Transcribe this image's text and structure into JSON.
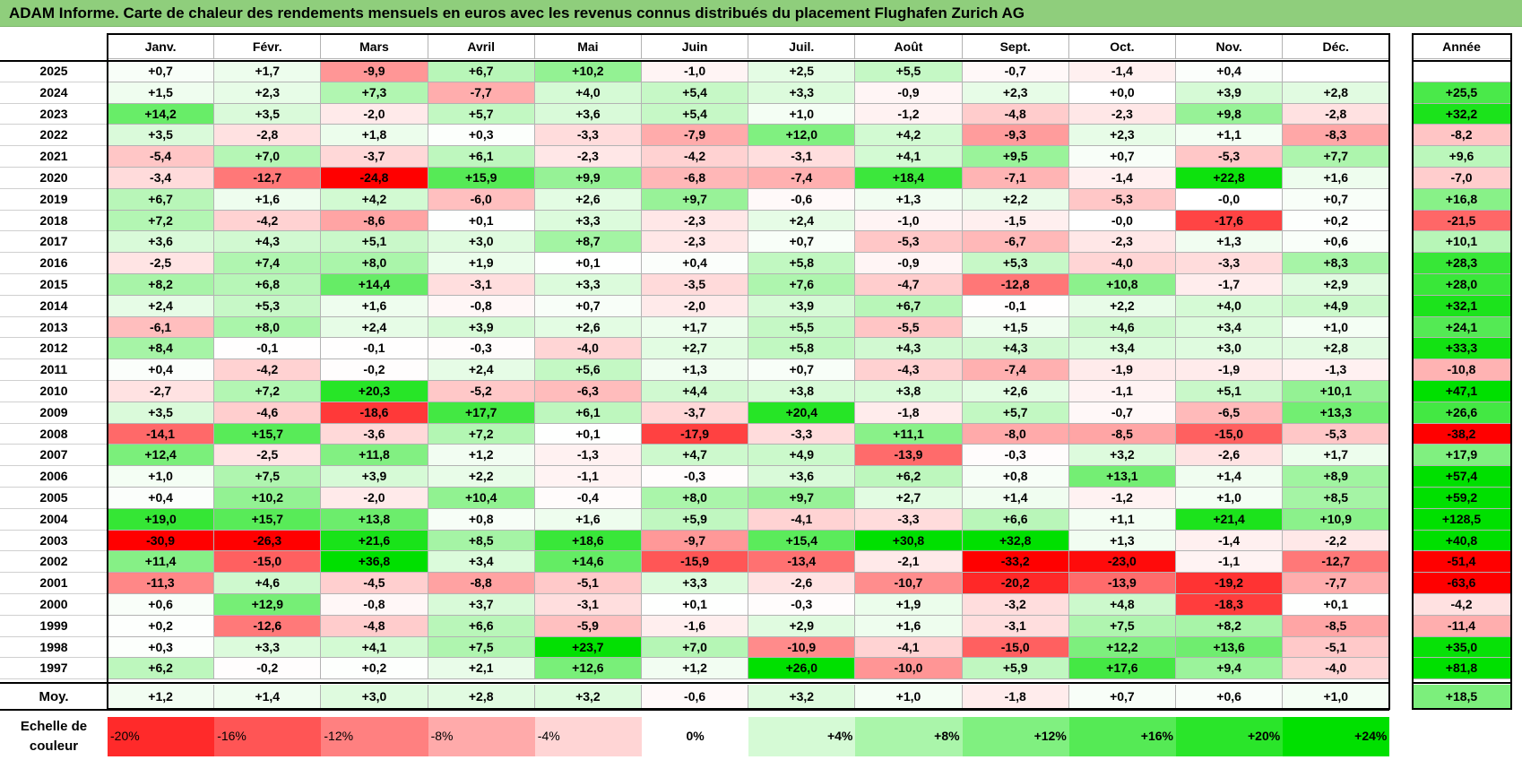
{
  "title": "ADAM Informe. Carte de chaleur des rendements mensuels en euros avec les revenus connus distribués du placement Flughafen Zurich AG",
  "chart_data": {
    "type": "heatmap",
    "title": "ADAM Informe. Carte de chaleur des rendements mensuels en euros avec les revenus connus distribués du placement Flughafen Zurich AG",
    "months": [
      "Janv.",
      "Févr.",
      "Mars",
      "Avril",
      "Mai",
      "Juin",
      "Juil.",
      "Août",
      "Sept.",
      "Oct.",
      "Nov.",
      "Déc."
    ],
    "year_header": "Année",
    "rows": [
      {
        "year": "2025",
        "values": [
          "+0,7",
          "+1,7",
          "-9,9",
          "+6,7",
          "+10,2",
          "-1,0",
          "+2,5",
          "+5,5",
          "-0,7",
          "-1,4",
          "+0,4",
          ""
        ],
        "annual": ""
      },
      {
        "year": "2024",
        "values": [
          "+1,5",
          "+2,3",
          "+7,3",
          "-7,7",
          "+4,0",
          "+5,4",
          "+3,3",
          "-0,9",
          "+2,3",
          "+0,0",
          "+3,9",
          "+2,8"
        ],
        "annual": "+25,5"
      },
      {
        "year": "2023",
        "values": [
          "+14,2",
          "+3,5",
          "-2,0",
          "+5,7",
          "+3,6",
          "+5,4",
          "+1,0",
          "-1,2",
          "-4,8",
          "-2,3",
          "+9,8",
          "-2,8"
        ],
        "annual": "+32,2"
      },
      {
        "year": "2022",
        "values": [
          "+3,5",
          "-2,8",
          "+1,8",
          "+0,3",
          "-3,3",
          "-7,9",
          "+12,0",
          "+4,2",
          "-9,3",
          "+2,3",
          "+1,1",
          "-8,3"
        ],
        "annual": "-8,2"
      },
      {
        "year": "2021",
        "values": [
          "-5,4",
          "+7,0",
          "-3,7",
          "+6,1",
          "-2,3",
          "-4,2",
          "-3,1",
          "+4,1",
          "+9,5",
          "+0,7",
          "-5,3",
          "+7,7"
        ],
        "annual": "+9,6"
      },
      {
        "year": "2020",
        "values": [
          "-3,4",
          "-12,7",
          "-24,8",
          "+15,9",
          "+9,9",
          "-6,8",
          "-7,4",
          "+18,4",
          "-7,1",
          "-1,4",
          "+22,8",
          "+1,6"
        ],
        "annual": "-7,0"
      },
      {
        "year": "2019",
        "values": [
          "+6,7",
          "+1,6",
          "+4,2",
          "-6,0",
          "+2,6",
          "+9,7",
          "-0,6",
          "+1,3",
          "+2,2",
          "-5,3",
          "-0,0",
          "+0,7"
        ],
        "annual": "+16,8"
      },
      {
        "year": "2018",
        "values": [
          "+7,2",
          "-4,2",
          "-8,6",
          "+0,1",
          "+3,3",
          "-2,3",
          "+2,4",
          "-1,0",
          "-1,5",
          "-0,0",
          "-17,6",
          "+0,2"
        ],
        "annual": "-21,5"
      },
      {
        "year": "2017",
        "values": [
          "+3,6",
          "+4,3",
          "+5,1",
          "+3,0",
          "+8,7",
          "-2,3",
          "+0,7",
          "-5,3",
          "-6,7",
          "-2,3",
          "+1,3",
          "+0,6"
        ],
        "annual": "+10,1"
      },
      {
        "year": "2016",
        "values": [
          "-2,5",
          "+7,4",
          "+8,0",
          "+1,9",
          "+0,1",
          "+0,4",
          "+5,8",
          "-0,9",
          "+5,3",
          "-4,0",
          "-3,3",
          "+8,3"
        ],
        "annual": "+28,3"
      },
      {
        "year": "2015",
        "values": [
          "+8,2",
          "+6,8",
          "+14,4",
          "-3,1",
          "+3,3",
          "-3,5",
          "+7,6",
          "-4,7",
          "-12,8",
          "+10,8",
          "-1,7",
          "+2,9"
        ],
        "annual": "+28,0"
      },
      {
        "year": "2014",
        "values": [
          "+2,4",
          "+5,3",
          "+1,6",
          "-0,8",
          "+0,7",
          "-2,0",
          "+3,9",
          "+6,7",
          "-0,1",
          "+2,2",
          "+4,0",
          "+4,9"
        ],
        "annual": "+32,1"
      },
      {
        "year": "2013",
        "values": [
          "-6,1",
          "+8,0",
          "+2,4",
          "+3,9",
          "+2,6",
          "+1,7",
          "+5,5",
          "-5,5",
          "+1,5",
          "+4,6",
          "+3,4",
          "+1,0"
        ],
        "annual": "+24,1"
      },
      {
        "year": "2012",
        "values": [
          "+8,4",
          "-0,1",
          "-0,1",
          "-0,3",
          "-4,0",
          "+2,7",
          "+5,8",
          "+4,3",
          "+4,3",
          "+3,4",
          "+3,0",
          "+2,8"
        ],
        "annual": "+33,3"
      },
      {
        "year": "2011",
        "values": [
          "+0,4",
          "-4,2",
          "-0,2",
          "+2,4",
          "+5,6",
          "+1,3",
          "+0,7",
          "-4,3",
          "-7,4",
          "-1,9",
          "-1,9",
          "-1,3"
        ],
        "annual": "-10,8"
      },
      {
        "year": "2010",
        "values": [
          "-2,7",
          "+7,2",
          "+20,3",
          "-5,2",
          "-6,3",
          "+4,4",
          "+3,8",
          "+3,8",
          "+2,6",
          "-1,1",
          "+5,1",
          "+10,1"
        ],
        "annual": "+47,1"
      },
      {
        "year": "2009",
        "values": [
          "+3,5",
          "-4,6",
          "-18,6",
          "+17,7",
          "+6,1",
          "-3,7",
          "+20,4",
          "-1,8",
          "+5,7",
          "-0,7",
          "-6,5",
          "+13,3"
        ],
        "annual": "+26,6"
      },
      {
        "year": "2008",
        "values": [
          "-14,1",
          "+15,7",
          "-3,6",
          "+7,2",
          "+0,1",
          "-17,9",
          "-3,3",
          "+11,1",
          "-8,0",
          "-8,5",
          "-15,0",
          "-5,3"
        ],
        "annual": "-38,2"
      },
      {
        "year": "2007",
        "values": [
          "+12,4",
          "-2,5",
          "+11,8",
          "+1,2",
          "-1,3",
          "+4,7",
          "+4,9",
          "-13,9",
          "-0,3",
          "+3,2",
          "-2,6",
          "+1,7"
        ],
        "annual": "+17,9"
      },
      {
        "year": "2006",
        "values": [
          "+1,0",
          "+7,5",
          "+3,9",
          "+2,2",
          "-1,1",
          "-0,3",
          "+3,6",
          "+6,2",
          "+0,8",
          "+13,1",
          "+1,4",
          "+8,9"
        ],
        "annual": "+57,4"
      },
      {
        "year": "2005",
        "values": [
          "+0,4",
          "+10,2",
          "-2,0",
          "+10,4",
          "-0,4",
          "+8,0",
          "+9,7",
          "+2,7",
          "+1,4",
          "-1,2",
          "+1,0",
          "+8,5"
        ],
        "annual": "+59,2"
      },
      {
        "year": "2004",
        "values": [
          "+19,0",
          "+15,7",
          "+13,8",
          "+0,8",
          "+1,6",
          "+5,9",
          "-4,1",
          "-3,3",
          "+6,6",
          "+1,1",
          "+21,4",
          "+10,9"
        ],
        "annual": "+128,5"
      },
      {
        "year": "2003",
        "values": [
          "-30,9",
          "-26,3",
          "+21,6",
          "+8,5",
          "+18,6",
          "-9,7",
          "+15,4",
          "+30,8",
          "+32,8",
          "+1,3",
          "-1,4",
          "-2,2"
        ],
        "annual": "+40,8"
      },
      {
        "year": "2002",
        "values": [
          "+11,4",
          "-15,0",
          "+36,8",
          "+3,4",
          "+14,6",
          "-15,9",
          "-13,4",
          "-2,1",
          "-33,2",
          "-23,0",
          "-1,1",
          "-12,7"
        ],
        "annual": "-51,4"
      },
      {
        "year": "2001",
        "values": [
          "-11,3",
          "+4,6",
          "-4,5",
          "-8,8",
          "-5,1",
          "+3,3",
          "-2,6",
          "-10,7",
          "-20,2",
          "-13,9",
          "-19,2",
          "-7,7"
        ],
        "annual": "-63,6"
      },
      {
        "year": "2000",
        "values": [
          "+0,6",
          "+12,9",
          "-0,8",
          "+3,7",
          "-3,1",
          "+0,1",
          "-0,3",
          "+1,9",
          "-3,2",
          "+4,8",
          "-18,3",
          "+0,1"
        ],
        "annual": "-4,2"
      },
      {
        "year": "1999",
        "values": [
          "+0,2",
          "-12,6",
          "-4,8",
          "+6,6",
          "-5,9",
          "-1,6",
          "+2,9",
          "+1,6",
          "-3,1",
          "+7,5",
          "+8,2",
          "-8,5"
        ],
        "annual": "-11,4"
      },
      {
        "year": "1998",
        "values": [
          "+0,3",
          "+3,3",
          "+4,1",
          "+7,5",
          "+23,7",
          "+7,0",
          "-10,9",
          "-4,1",
          "-15,0",
          "+12,2",
          "+13,6",
          "-5,1"
        ],
        "annual": "+35,0"
      },
      {
        "year": "1997",
        "values": [
          "+6,2",
          "-0,2",
          "+0,2",
          "+2,1",
          "+12,6",
          "+1,2",
          "+26,0",
          "-10,0",
          "+5,9",
          "+17,6",
          "+9,4",
          "-4,0"
        ],
        "annual": "+81,8"
      }
    ],
    "average": {
      "label": "Moy.",
      "values": [
        "+1,2",
        "+1,4",
        "+3,0",
        "+2,8",
        "+3,2",
        "-0,6",
        "+3,2",
        "+1,0",
        "-1,8",
        "+0,7",
        "+0,6",
        "+1,0"
      ],
      "annual": "+18,5"
    },
    "scale": {
      "label_line1": "Echelle de",
      "label_line2": "couleur",
      "items": [
        "-20%",
        "-16%",
        "-12%",
        "-8%",
        "-4%",
        "0%",
        "+4%",
        "+8%",
        "+12%",
        "+16%",
        "+20%",
        "+24%"
      ],
      "values": [
        -20,
        -16,
        -12,
        -8,
        -4,
        0,
        4,
        8,
        12,
        16,
        20,
        24
      ]
    },
    "colors": {
      "negative": "#ff0000",
      "neutral": "#ffffff",
      "positive": "#00e000"
    }
  }
}
